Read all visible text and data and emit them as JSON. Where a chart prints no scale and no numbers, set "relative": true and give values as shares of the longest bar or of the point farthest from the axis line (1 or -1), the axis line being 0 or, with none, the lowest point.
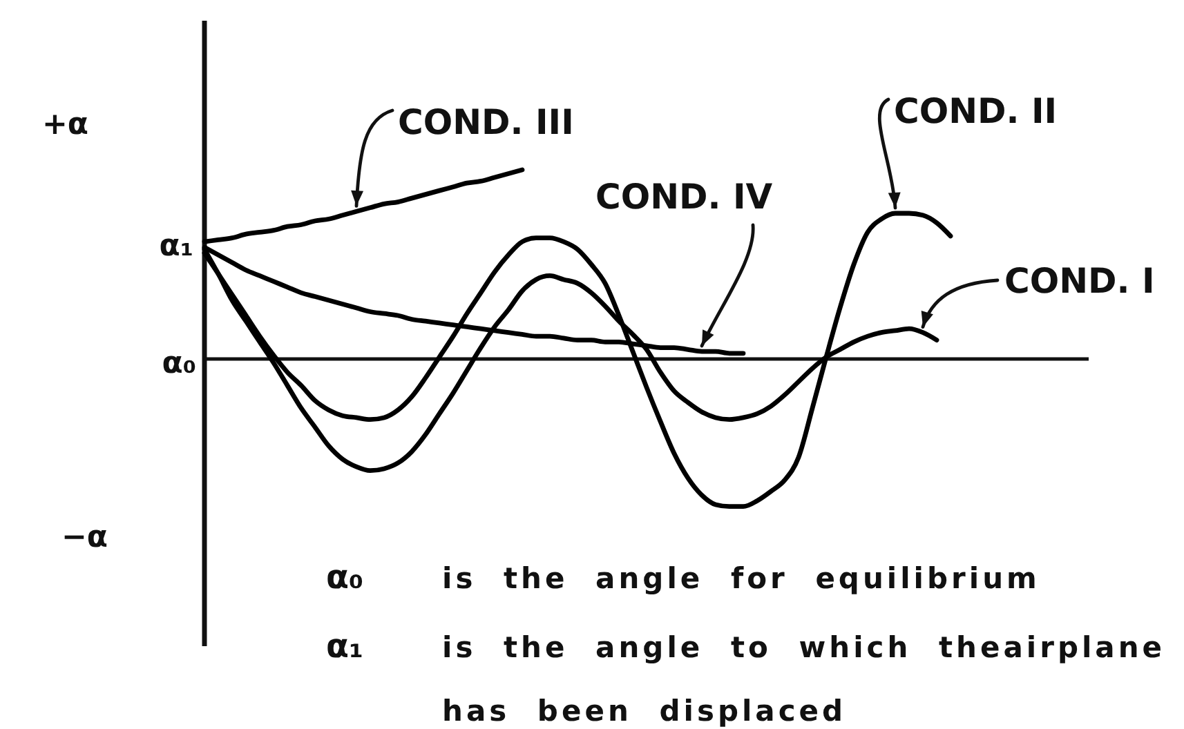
{
  "chart_data": {
    "type": "line",
    "relative": true,
    "categories": [
      null,
      null,
      null,
      null,
      null,
      null,
      null,
      null,
      null,
      null,
      null,
      null,
      null,
      null,
      null,
      null,
      null,
      null,
      null,
      null,
      null,
      null,
      null,
      null,
      null,
      null,
      null,
      null,
      null,
      null,
      null,
      null,
      null,
      null,
      null,
      null,
      null,
      null,
      null,
      null,
      null,
      null,
      null,
      null,
      null,
      null,
      null,
      null,
      null,
      null,
      null,
      null,
      null,
      null,
      null,
      null,
      null,
      null,
      null,
      null,
      null,
      null,
      null,
      null,
      null
    ],
    "series": [
      {
        "name": "COND. I",
        "color": "#000000",
        "values": [
          0.58,
          0.45,
          0.31,
          0.2,
          0.09,
          -0.02,
          -0.14,
          -0.26,
          -0.36,
          -0.46,
          -0.53,
          -0.57,
          -0.59,
          -0.58,
          -0.55,
          -0.49,
          -0.4,
          -0.29,
          -0.18,
          -0.06,
          0.06,
          0.17,
          0.26,
          0.36,
          0.42,
          0.44,
          0.42,
          0.4,
          0.35,
          0.28,
          0.2,
          0.13,
          0.05,
          -0.07,
          -0.17,
          -0.23,
          -0.28,
          -0.31,
          -0.32,
          -0.31,
          -0.29,
          -0.25,
          -0.19,
          -0.12,
          -0.05,
          0.01,
          0.05,
          0.09,
          0.12,
          0.14,
          0.15,
          0.16,
          0.14,
          0.1,
          null,
          null,
          null,
          null,
          null,
          null,
          null,
          null,
          null,
          null,
          null
        ]
      },
      {
        "name": "COND. II",
        "color": "#000000",
        "values": [
          0.56,
          0.45,
          0.34,
          0.23,
          0.12,
          0.02,
          -0.07,
          -0.14,
          -0.22,
          -0.27,
          -0.3,
          -0.31,
          -0.32,
          -0.31,
          -0.27,
          -0.2,
          -0.1,
          0.01,
          0.12,
          0.24,
          0.35,
          0.46,
          0.55,
          0.62,
          0.64,
          0.64,
          0.62,
          0.58,
          0.5,
          0.4,
          0.23,
          0.04,
          -0.15,
          -0.33,
          -0.5,
          -0.63,
          -0.72,
          -0.77,
          -0.78,
          -0.78,
          -0.75,
          -0.7,
          -0.64,
          -0.52,
          -0.26,
          0.01,
          0.27,
          0.5,
          0.67,
          0.74,
          0.77,
          0.77,
          0.76,
          0.72,
          0.65,
          null,
          null,
          null,
          null,
          null,
          null,
          null,
          null,
          null,
          null
        ]
      },
      {
        "name": "COND. III",
        "color": "#000000",
        "values": [
          0.62,
          0.63,
          0.64,
          0.66,
          0.67,
          0.68,
          0.7,
          0.71,
          0.73,
          0.74,
          0.76,
          0.78,
          0.8,
          0.82,
          0.83,
          0.85,
          0.87,
          0.89,
          0.91,
          0.93,
          0.94,
          0.96,
          0.98,
          1.0,
          null,
          null,
          null,
          null,
          null,
          null,
          null,
          null,
          null,
          null,
          null,
          null,
          null,
          null,
          null,
          null,
          null,
          null,
          null,
          null,
          null,
          null,
          null,
          null,
          null,
          null,
          null,
          null,
          null,
          null,
          null,
          null,
          null,
          null,
          null,
          null,
          null,
          null,
          null,
          null,
          null
        ]
      },
      {
        "name": "COND. IV",
        "color": "#000000",
        "values": [
          0.59,
          0.55,
          0.51,
          0.47,
          0.44,
          0.41,
          0.38,
          0.35,
          0.33,
          0.31,
          0.29,
          0.27,
          0.25,
          0.24,
          0.23,
          0.21,
          0.2,
          0.19,
          0.18,
          0.17,
          0.16,
          0.15,
          0.14,
          0.13,
          0.12,
          0.12,
          0.11,
          0.1,
          0.1,
          0.09,
          0.09,
          0.08,
          0.07,
          0.06,
          0.06,
          0.05,
          0.04,
          0.04,
          0.03,
          0.03,
          null,
          null,
          null,
          null,
          null,
          null,
          null,
          null,
          null,
          null,
          null,
          null,
          null,
          null,
          null,
          null,
          null,
          null,
          null,
          null,
          null,
          null,
          null,
          null,
          null
        ]
      }
    ],
    "annotations": [
      "+α",
      "α₁",
      "α₀",
      "−α",
      "α₀ is the angle for equilibrium",
      "α₁ is the angle to which theairplane has been displaced"
    ]
  }
}
